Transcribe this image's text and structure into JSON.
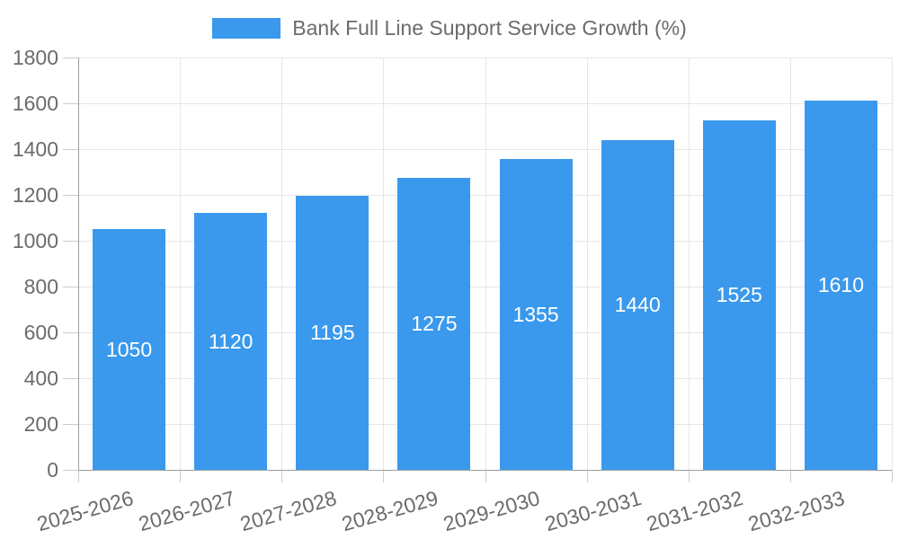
{
  "chart_data": {
    "type": "bar",
    "title": "Bank Full Line Support Service Growth (%)",
    "categories": [
      "2025-2026",
      "2026-2027",
      "2027-2028",
      "2028-2029",
      "2029-2030",
      "2030-2031",
      "2031-2032",
      "2032-2033"
    ],
    "values": [
      1050,
      1120,
      1195,
      1275,
      1355,
      1440,
      1525,
      1610
    ],
    "xlabel": "",
    "ylabel": "",
    "ylim": [
      0,
      1800
    ],
    "ytick_step": 200,
    "grid": true,
    "legend_position": "top-center",
    "value_label_position": "inside-center",
    "x_label_rotation_deg": -16
  },
  "colors": {
    "bar": "#3a99ec",
    "label_text": "#6b6b6b",
    "value_label_text": "#ffffff",
    "grid": "#e6e6e6",
    "axis": "#9e9e9e",
    "tick": "#cccccc",
    "background": "#ffffff"
  }
}
